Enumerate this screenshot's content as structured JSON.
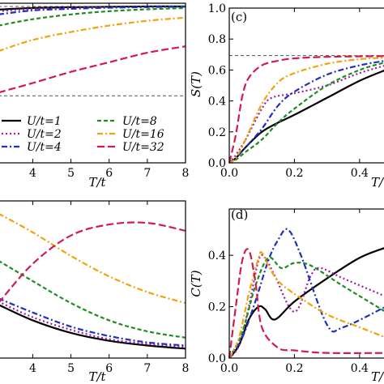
{
  "figure": {
    "panel_c_label": "(c)",
    "panel_d_label": "(d)",
    "tl_xlabel": "T/t",
    "bl_xlabel": "T/t",
    "c_ylabel": "S(T)",
    "c_xlabel": "T/",
    "d_ylabel": "C(T)",
    "d_xlabel": "T/"
  },
  "legend": [
    {
      "label": "U/t=1",
      "color": "#000000",
      "dash": "solid"
    },
    {
      "label": "U/t=2",
      "color": "#9c1aa6",
      "dash": "dot"
    },
    {
      "label": "U/t=4",
      "color": "#1f2fbf",
      "dash": "dashdot"
    },
    {
      "label": "U/t=8",
      "color": "#1e8c1e",
      "dash": "dash"
    },
    {
      "label": "U/t=16",
      "color": "#f0a30a",
      "dash": "dashdot"
    },
    {
      "label": "U/t=32",
      "color": "#d11a4f",
      "dash": "longdash"
    }
  ],
  "chart_data": [
    {
      "panel": "top-left (cropped)",
      "type": "line",
      "xlabel": "T/t",
      "xticks": [
        "4",
        "5",
        "6",
        "7",
        "8"
      ],
      "xlim": [
        3.1,
        8
      ],
      "ylim": [
        0,
        1
      ],
      "reference_lines_y": [
        0.98,
        0.42
      ],
      "series": [
        {
          "name": "U/t=1",
          "x": [
            3.1,
            4,
            5,
            6,
            7,
            8
          ],
          "y": [
            0.96,
            0.97,
            0.975,
            0.978,
            0.98,
            0.98
          ]
        },
        {
          "name": "U/t=2",
          "x": [
            3.1,
            4,
            5,
            6,
            7,
            8
          ],
          "y": [
            0.95,
            0.965,
            0.972,
            0.976,
            0.978,
            0.98
          ]
        },
        {
          "name": "U/t=4",
          "x": [
            3.1,
            4,
            5,
            6,
            7,
            8
          ],
          "y": [
            0.93,
            0.955,
            0.965,
            0.972,
            0.976,
            0.978
          ]
        },
        {
          "name": "U/t=8",
          "x": [
            3.1,
            4,
            5,
            6,
            7,
            8
          ],
          "y": [
            0.86,
            0.9,
            0.93,
            0.95,
            0.962,
            0.97
          ]
        },
        {
          "name": "U/t=16",
          "x": [
            3.1,
            4,
            5,
            6,
            7,
            8
          ],
          "y": [
            0.7,
            0.77,
            0.82,
            0.86,
            0.89,
            0.91
          ]
        },
        {
          "name": "U/t=32",
          "x": [
            3.1,
            4,
            5,
            6,
            7,
            8
          ],
          "y": [
            0.44,
            0.5,
            0.57,
            0.63,
            0.69,
            0.73
          ]
        }
      ]
    },
    {
      "panel": "(c)",
      "type": "line",
      "ylabel": "S(T)",
      "xlabel": "T/",
      "xticks": [
        "0.0",
        "0.2",
        "0.4"
      ],
      "yticks": [
        "0.0",
        "0.2",
        "0.4",
        "0.6",
        "0.8",
        "1.0"
      ],
      "xlim": [
        0,
        0.48
      ],
      "ylim": [
        0,
        1
      ],
      "reference_line_y": 0.693,
      "series": [
        {
          "name": "U/t=1",
          "x": [
            0,
            0.02,
            0.05,
            0.1,
            0.15,
            0.2,
            0.3,
            0.4,
            0.48
          ],
          "y": [
            0,
            0.03,
            0.1,
            0.2,
            0.26,
            0.31,
            0.42,
            0.53,
            0.6
          ]
        },
        {
          "name": "U/t=2",
          "x": [
            0,
            0.02,
            0.05,
            0.1,
            0.13,
            0.2,
            0.3,
            0.4,
            0.48
          ],
          "y": [
            0,
            0.05,
            0.15,
            0.35,
            0.42,
            0.45,
            0.5,
            0.58,
            0.63
          ]
        },
        {
          "name": "U/t=4",
          "x": [
            0,
            0.02,
            0.05,
            0.1,
            0.15,
            0.2,
            0.3,
            0.4,
            0.48
          ],
          "y": [
            0,
            0.03,
            0.1,
            0.22,
            0.37,
            0.46,
            0.57,
            0.63,
            0.66
          ]
        },
        {
          "name": "U/t=8",
          "x": [
            0,
            0.02,
            0.05,
            0.1,
            0.15,
            0.2,
            0.3,
            0.4,
            0.48
          ],
          "y": [
            0,
            0.02,
            0.07,
            0.15,
            0.26,
            0.35,
            0.5,
            0.6,
            0.65
          ]
        },
        {
          "name": "U/t=16",
          "x": [
            0,
            0.02,
            0.05,
            0.1,
            0.15,
            0.2,
            0.3,
            0.4,
            0.48
          ],
          "y": [
            0,
            0.03,
            0.15,
            0.38,
            0.52,
            0.58,
            0.64,
            0.67,
            0.68
          ]
        },
        {
          "name": "U/t=32",
          "x": [
            0,
            0.02,
            0.04,
            0.06,
            0.1,
            0.15,
            0.2,
            0.3,
            0.48
          ],
          "y": [
            0,
            0.18,
            0.43,
            0.55,
            0.63,
            0.66,
            0.675,
            0.685,
            0.69
          ]
        }
      ]
    },
    {
      "panel": "bottom-left (cropped)",
      "type": "line",
      "xlabel": "T/t",
      "xticks": [
        "4",
        "5",
        "6",
        "7",
        "8"
      ],
      "xlim": [
        3.1,
        8
      ],
      "ylim": [
        0,
        1
      ],
      "series": [
        {
          "name": "U/t=1",
          "x": [
            3.1,
            4,
            5,
            6,
            7,
            8
          ],
          "y": [
            0.34,
            0.24,
            0.16,
            0.11,
            0.08,
            0.06
          ]
        },
        {
          "name": "U/t=2",
          "x": [
            3.1,
            4,
            5,
            6,
            7,
            8
          ],
          "y": [
            0.36,
            0.26,
            0.18,
            0.12,
            0.09,
            0.07
          ]
        },
        {
          "name": "U/t=4",
          "x": [
            3.1,
            4,
            5,
            6,
            7,
            8
          ],
          "y": [
            0.38,
            0.29,
            0.2,
            0.14,
            0.1,
            0.08
          ]
        },
        {
          "name": "U/t=8",
          "x": [
            3.1,
            4,
            5,
            6,
            7,
            8
          ],
          "y": [
            0.62,
            0.49,
            0.35,
            0.24,
            0.17,
            0.13
          ]
        },
        {
          "name": "U/t=16",
          "x": [
            3.1,
            4,
            5,
            6,
            7,
            8
          ],
          "y": [
            0.92,
            0.8,
            0.65,
            0.52,
            0.42,
            0.35
          ]
        },
        {
          "name": "U/t=32",
          "x": [
            3.1,
            4,
            5,
            6,
            7,
            8
          ],
          "y": [
            0.35,
            0.6,
            0.78,
            0.85,
            0.86,
            0.81
          ]
        }
      ]
    },
    {
      "panel": "(d)",
      "type": "line",
      "ylabel": "C(T)",
      "xlabel": "T/",
      "xticks": [
        "0.0",
        "0.2",
        "0.4"
      ],
      "yticks": [
        "0.0",
        "0.2",
        "0.4"
      ],
      "xlim": [
        0,
        0.48
      ],
      "ylim": [
        0,
        0.58
      ],
      "series": [
        {
          "name": "U/t=1",
          "x": [
            0,
            0.03,
            0.06,
            0.09,
            0.11,
            0.14,
            0.2,
            0.3,
            0.4,
            0.48
          ],
          "y": [
            0,
            0.05,
            0.15,
            0.2,
            0.19,
            0.15,
            0.22,
            0.31,
            0.39,
            0.43
          ]
        },
        {
          "name": "U/t=2",
          "x": [
            0,
            0.03,
            0.06,
            0.09,
            0.11,
            0.14,
            0.2,
            0.25,
            0.28,
            0.35,
            0.48
          ],
          "y": [
            0,
            0.05,
            0.2,
            0.38,
            0.39,
            0.32,
            0.18,
            0.32,
            0.35,
            0.31,
            0.24
          ]
        },
        {
          "name": "U/t=4",
          "x": [
            0,
            0.04,
            0.08,
            0.12,
            0.15,
            0.18,
            0.22,
            0.3,
            0.35,
            0.48
          ],
          "y": [
            0,
            0.08,
            0.22,
            0.38,
            0.46,
            0.5,
            0.4,
            0.13,
            0.12,
            0.2
          ]
        },
        {
          "name": "U/t=8",
          "x": [
            0,
            0.04,
            0.08,
            0.12,
            0.16,
            0.2,
            0.25,
            0.35,
            0.48
          ],
          "y": [
            0,
            0.1,
            0.28,
            0.39,
            0.35,
            0.37,
            0.36,
            0.28,
            0.18
          ]
        },
        {
          "name": "U/t=16",
          "x": [
            0,
            0.03,
            0.06,
            0.09,
            0.1,
            0.12,
            0.15,
            0.2,
            0.3,
            0.4,
            0.48
          ],
          "y": [
            0,
            0.08,
            0.25,
            0.39,
            0.41,
            0.36,
            0.3,
            0.25,
            0.17,
            0.12,
            0.08
          ]
        },
        {
          "name": "U/t=32",
          "x": [
            0,
            0.02,
            0.04,
            0.06,
            0.08,
            0.1,
            0.15,
            0.2,
            0.3,
            0.48
          ],
          "y": [
            0,
            0.2,
            0.38,
            0.42,
            0.3,
            0.12,
            0.04,
            0.03,
            0.02,
            0.02
          ]
        }
      ]
    }
  ]
}
